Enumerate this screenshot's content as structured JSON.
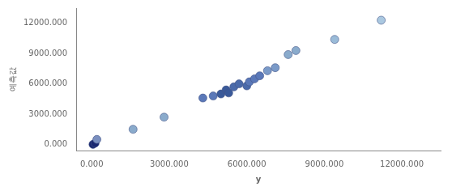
{
  "chart_data": {
    "type": "scatter",
    "xlabel": "y",
    "ylabel": "예측값",
    "x": [
      50000,
      130000,
      200000,
      1600000,
      2800000,
      4300000,
      4700000,
      5000000,
      5200000,
      5300000,
      5500000,
      5700000,
      6000000,
      6100000,
      6300000,
      6500000,
      6800000,
      7100000,
      7600000,
      7900000,
      9400000,
      11200000
    ],
    "values": [
      10000,
      130000,
      500000,
      1500000,
      2700000,
      4600000,
      4800000,
      5000000,
      5400000,
      5100000,
      5700000,
      6000000,
      5800000,
      6200000,
      6500000,
      6800000,
      7300000,
      7600000,
      8900000,
      9300000,
      10400000,
      12300000
    ],
    "colors": [
      "#1a2870",
      "#1a2870",
      "#7a8fbf",
      "#8aabcc",
      "#8aabcc",
      "#5a78b8",
      "#5a78b8",
      "#3a5a9a",
      "#3a5a9a",
      "#3a5a9a",
      "#4a6aaa",
      "#4a6aaa",
      "#4a6aaa",
      "#5a78b8",
      "#5a78b8",
      "#5a78b8",
      "#7a9ac8",
      "#7a9ac8",
      "#8aabcc",
      "#8aabcc",
      "#9abbd8",
      "#aac8e0"
    ],
    "xlim": [
      -600000,
      13500000
    ],
    "ylim": [
      -600000,
      13500000
    ],
    "xticks": [
      {
        "value": 0,
        "label": "0.000"
      },
      {
        "value": 3000000,
        "label": "3000.000"
      },
      {
        "value": 6000000,
        "label": "6000.000"
      },
      {
        "value": 9000000,
        "label": "9000.000"
      },
      {
        "value": 12000000,
        "label": "12000.000"
      }
    ],
    "yticks": [
      {
        "value": 0,
        "label": "0.000"
      },
      {
        "value": 3000000,
        "label": "3000.000"
      },
      {
        "value": 6000000,
        "label": "6000.000"
      },
      {
        "value": 9000000,
        "label": "9000.000"
      },
      {
        "value": 12000000,
        "label": "12000.000"
      }
    ],
    "grid": false
  }
}
